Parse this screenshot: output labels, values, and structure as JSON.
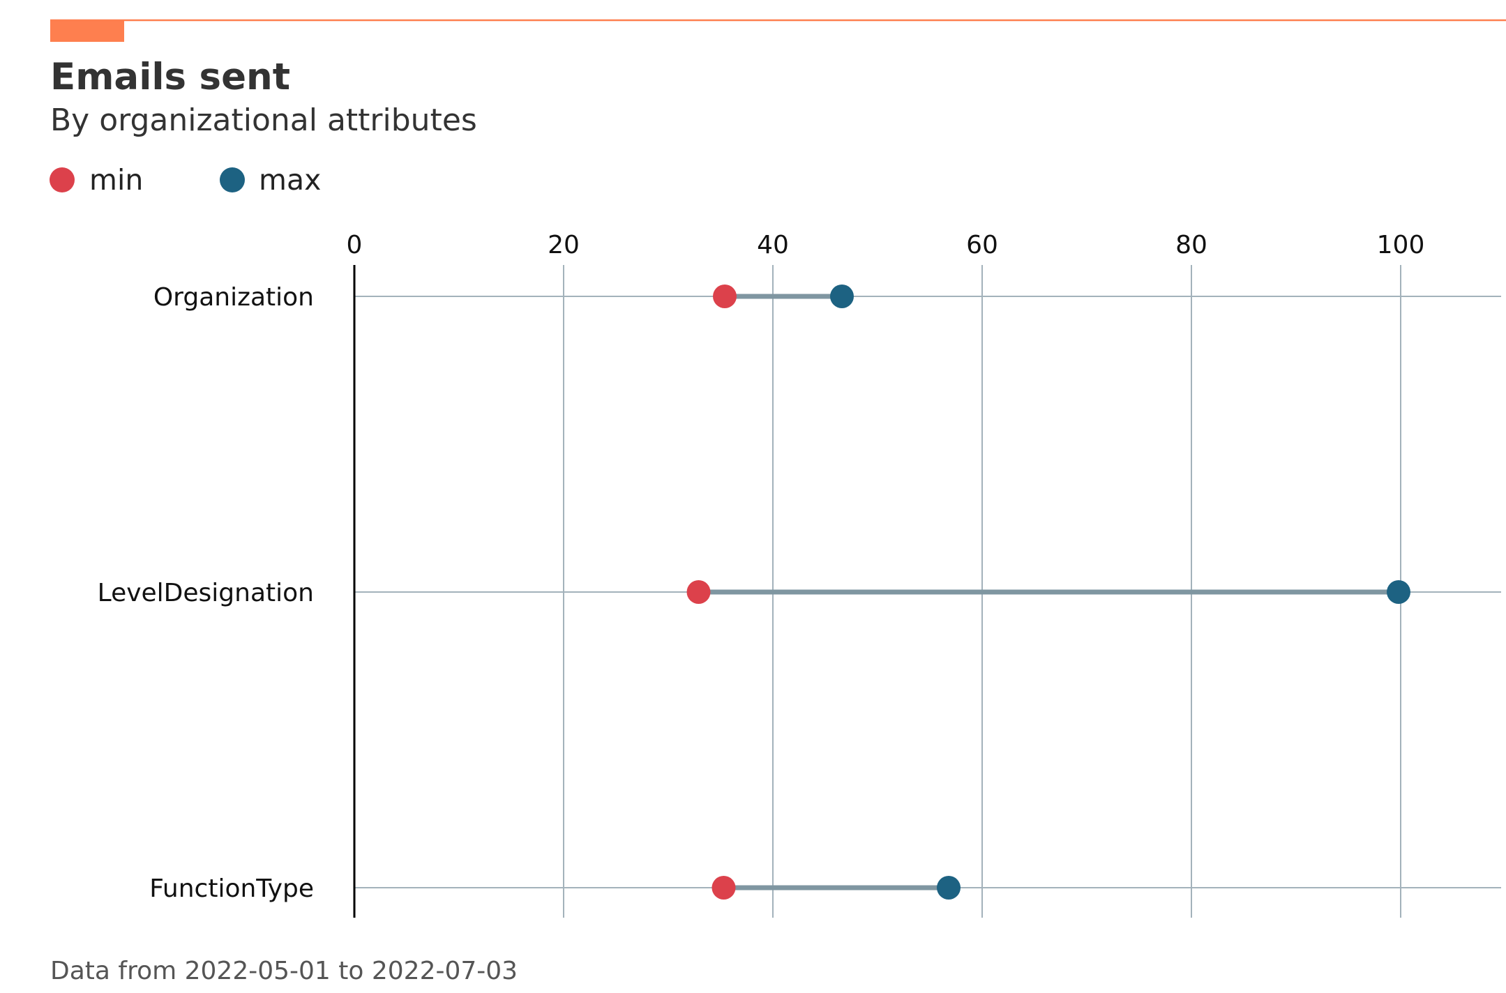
{
  "chart_data": {
    "type": "dumbbell",
    "title": "Emails sent",
    "subtitle": "By organizational attributes",
    "caption": "Data from 2022-05-01 to 2022-07-03",
    "categories": [
      "Organization",
      "LevelDesignation",
      "FunctionType"
    ],
    "series": [
      {
        "name": "min",
        "color": "#dc414b",
        "values": [
          35.4,
          32.9,
          35.3
        ]
      },
      {
        "name": "max",
        "color": "#1d6282",
        "values": [
          46.6,
          99.8,
          56.8
        ]
      }
    ],
    "xticks": [
      "0",
      "20",
      "40",
      "60",
      "80",
      "100"
    ],
    "xlim": [
      0,
      110
    ],
    "x_axis_position": "top",
    "grid": true,
    "legend_position": "top-left",
    "accent_color": "#fe7f4f",
    "segment_color": "#7f96a1",
    "grid_color": "#a3b2bb"
  }
}
